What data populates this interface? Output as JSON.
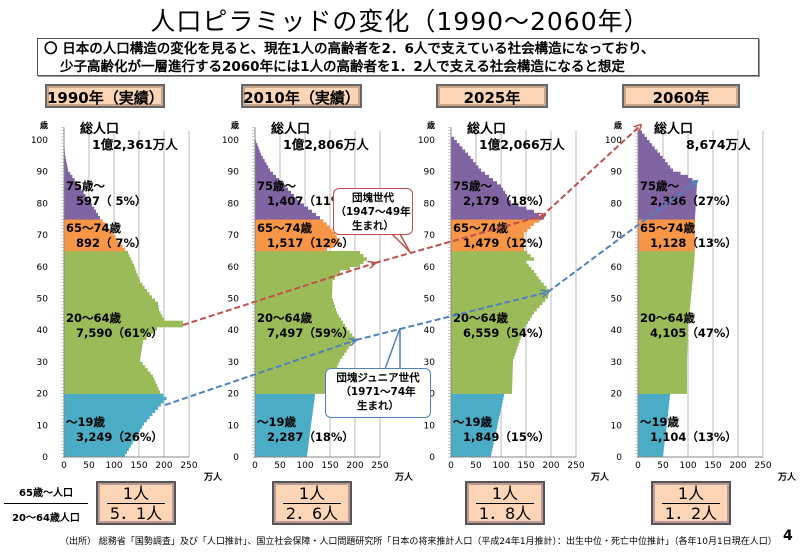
{
  "title": "人口ピラミッドの変化（1990～2060年）",
  "description": [
    "〇 日本の人口構造の変化を見ると、現在1人の高齢者を2．6人で支えている社会構造になっており、",
    "少子高齢化が一層進行する2060年には1人の高齢者を1．2人で支える社会構造になると想定"
  ],
  "ratio_label": {
    "numerator": "65歳～人口",
    "denominator": "20～64歳人口"
  },
  "callouts": {
    "dankai": [
      "団塊世代",
      "（1947～49年",
      "生まれ）"
    ],
    "dankai_junior": [
      "団塊ジュニア世代",
      "（1971～74年",
      "生まれ）"
    ]
  },
  "footnote": "（出所） 総務省「国勢調査」及び「人口推計」、国立社会保障・人口問題研究所「日本の将来推計人口（平成24年1月推計）：出生中位・死亡中位推計」（各年10月1日現在人口）",
  "page_number": "4",
  "colors": {
    "under19": "#4bacc6",
    "age20_64": "#9bbb59",
    "age65_74": "#f79646",
    "age75plus": "#8064a2",
    "dankai": "#c0504d",
    "junior": "#4f81bd"
  },
  "chart_data": [
    {
      "type": "bar",
      "orientation": "horizontal",
      "year_label": "1990年（実績）",
      "total_label": "総人口",
      "total": "1億2,361万人",
      "groups": [
        {
          "label": "75歳～",
          "value": "597（ 5%）"
        },
        {
          "label": "65～74歳",
          "value": "892（ 7%）"
        },
        {
          "label": "20～64歳",
          "value": "7,590（61%）"
        },
        {
          "label": "～19歳",
          "value": "3,249（26%）"
        }
      ],
      "profile": [
        [
          0,
          122
        ],
        [
          10,
          160
        ],
        [
          18,
          205
        ],
        [
          20,
          192
        ],
        [
          25,
          178
        ],
        [
          30,
          152
        ],
        [
          36,
          158
        ],
        [
          40,
          186
        ],
        [
          41,
          238
        ],
        [
          42,
          238
        ],
        [
          43,
          200
        ],
        [
          46,
          190
        ],
        [
          48,
          188
        ],
        [
          50,
          176
        ],
        [
          52,
          166
        ],
        [
          55,
          152
        ],
        [
          60,
          140
        ],
        [
          64,
          128
        ],
        [
          65,
          122
        ],
        [
          70,
          98
        ],
        [
          75,
          72
        ],
        [
          80,
          52
        ],
        [
          85,
          30
        ],
        [
          90,
          8
        ],
        [
          95,
          2
        ],
        [
          100,
          0
        ]
      ],
      "ratio": [
        "1人",
        "5．1人"
      ]
    },
    {
      "type": "bar",
      "orientation": "horizontal",
      "year_label": "2010年（実績）",
      "total_label": "総人口",
      "total": "1億2,806万人",
      "groups": [
        {
          "label": "75歳～",
          "value": "1,407（11%）"
        },
        {
          "label": "65～74歳",
          "value": "1,517（12%）"
        },
        {
          "label": "20～64歳",
          "value": "7,497（59%）"
        },
        {
          "label": "～19歳",
          "value": "2,287（18%）"
        }
      ],
      "profile": [
        [
          0,
          104
        ],
        [
          19,
          120
        ],
        [
          20,
          145
        ],
        [
          25,
          156
        ],
        [
          30,
          170
        ],
        [
          35,
          192
        ],
        [
          37,
          200
        ],
        [
          40,
          184
        ],
        [
          45,
          164
        ],
        [
          50,
          154
        ],
        [
          55,
          155
        ],
        [
          58,
          170
        ],
        [
          60,
          210
        ],
        [
          62,
          224
        ],
        [
          64,
          210
        ],
        [
          65,
          144
        ],
        [
          67,
          170
        ],
        [
          70,
          160
        ],
        [
          72,
          150
        ],
        [
          75,
          130
        ],
        [
          80,
          90
        ],
        [
          85,
          60
        ],
        [
          90,
          30
        ],
        [
          95,
          12
        ],
        [
          100,
          0
        ]
      ],
      "ratio": [
        "1人",
        "2．6人"
      ]
    },
    {
      "type": "bar",
      "orientation": "horizontal",
      "year_label": "2025年",
      "total_label": "総人口",
      "total": "1億2,066万人",
      "groups": [
        {
          "label": "75歳～",
          "value": "2,179（18%）"
        },
        {
          "label": "65～74歳",
          "value": "1,479（12%）"
        },
        {
          "label": "20～64歳",
          "value": "6,559（54%）"
        },
        {
          "label": "～19歳",
          "value": "1,849（15%）"
        }
      ],
      "profile": [
        [
          0,
          80
        ],
        [
          19,
          106
        ],
        [
          20,
          122
        ],
        [
          30,
          124
        ],
        [
          40,
          146
        ],
        [
          45,
          166
        ],
        [
          50,
          194
        ],
        [
          52,
          197
        ],
        [
          55,
          180
        ],
        [
          58,
          166
        ],
        [
          61,
          150
        ],
        [
          62,
          166
        ],
        [
          65,
          146
        ],
        [
          70,
          146
        ],
        [
          73,
          166
        ],
        [
          75,
          186
        ],
        [
          77,
          166
        ],
        [
          80,
          120
        ],
        [
          85,
          100
        ],
        [
          90,
          60
        ],
        [
          95,
          34
        ],
        [
          100,
          6
        ],
        [
          101,
          0
        ]
      ],
      "ratio": [
        "1人",
        "1．8人"
      ]
    },
    {
      "type": "bar",
      "orientation": "horizontal",
      "year_label": "2060年",
      "total_label": "総人口",
      "total": "8,674万人",
      "groups": [
        {
          "label": "75歳～",
          "value": "2,336（27%）"
        },
        {
          "label": "65～74歳",
          "value": "1,128（13%）"
        },
        {
          "label": "20～64歳",
          "value": "4,105（47%）"
        },
        {
          "label": "～19歳",
          "value": "1,104（13%）"
        }
      ],
      "profile": [
        [
          0,
          50
        ],
        [
          10,
          58
        ],
        [
          19,
          64
        ],
        [
          20,
          98
        ],
        [
          30,
          98
        ],
        [
          40,
          100
        ],
        [
          50,
          106
        ],
        [
          60,
          112
        ],
        [
          65,
          114
        ],
        [
          75,
          114
        ],
        [
          80,
          116
        ],
        [
          86,
          118
        ],
        [
          88,
          100
        ],
        [
          90,
          70
        ],
        [
          95,
          44
        ],
        [
          100,
          18
        ],
        [
          102,
          8
        ]
      ],
      "ratio": [
        "1人",
        "1．2人"
      ]
    }
  ],
  "axis": {
    "x_ticks": [
      "0",
      "50",
      "100",
      "150",
      "200",
      "250"
    ],
    "x_unit": "万人",
    "y_ticks": [
      "0",
      "10",
      "20",
      "30",
      "40",
      "50",
      "60",
      "70",
      "80",
      "90",
      "100"
    ],
    "y_unit": "歳",
    "xlim": [
      0,
      250
    ],
    "ylim": [
      0,
      100
    ]
  }
}
